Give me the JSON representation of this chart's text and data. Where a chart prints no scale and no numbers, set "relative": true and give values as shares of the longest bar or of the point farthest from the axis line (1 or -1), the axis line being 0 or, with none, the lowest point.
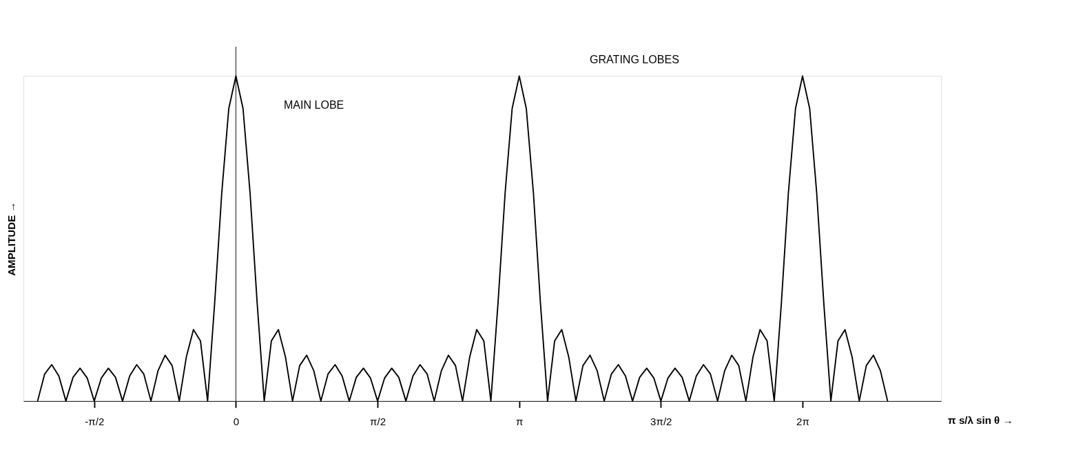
{
  "chart_data": {
    "type": "line",
    "relative": true,
    "xlabel": "π s/λ sin θ →",
    "ylabel": "AMPLITUDE →",
    "x": [
      -2.199,
      -2.121,
      -2.042,
      -1.963,
      -1.885,
      -1.806,
      -1.728,
      -1.649,
      -1.571,
      -1.492,
      -1.414,
      -1.335,
      -1.257,
      -1.178,
      -1.1,
      -1.021,
      -0.942,
      -0.864,
      -0.785,
      -0.707,
      -0.628,
      -0.55,
      -0.471,
      -0.393,
      -0.314,
      -0.236,
      -0.157,
      -0.079,
      0,
      0.079,
      0.157,
      0.236,
      0.314,
      0.393,
      0.471,
      0.55,
      0.628,
      0.707,
      0.785,
      0.864,
      0.942,
      1.021,
      1.1,
      1.178,
      1.257,
      1.335,
      1.414,
      1.492,
      1.571,
      1.649,
      1.728,
      1.806,
      1.885,
      1.963,
      2.042,
      2.121,
      2.199,
      2.278,
      2.356,
      2.435,
      2.513,
      2.592,
      2.67,
      2.749,
      2.827,
      2.906,
      2.985,
      3.063,
      3.142,
      3.22,
      3.299,
      3.377,
      3.456,
      3.534,
      3.613,
      3.691,
      3.77,
      3.848,
      3.927,
      4.006,
      4.084,
      4.163,
      4.241,
      4.32,
      4.398,
      4.477,
      4.555,
      4.634,
      4.712,
      4.791,
      4.869,
      4.948,
      5.027,
      5.105,
      5.184,
      5.262,
      5.341,
      5.419,
      5.498,
      5.576,
      5.655,
      5.733,
      5.812,
      5.89,
      5.969,
      6.048,
      6.126,
      6.205,
      6.283,
      6.362,
      6.44,
      6.519,
      6.597,
      6.676,
      6.754,
      6.833,
      6.912,
      6.99,
      7.069,
      7.147,
      7.226
    ],
    "series": [
      {
        "color": "#000000",
        "values": [
          0,
          0.083,
          0.112,
          0.077,
          0,
          0.073,
          0.101,
          0.071,
          0,
          0.071,
          0.101,
          0.073,
          0,
          0.077,
          0.112,
          0.083,
          0,
          0.093,
          0.141,
          0.109,
          0,
          0.135,
          0.22,
          0.185,
          0,
          0.3,
          0.64,
          0.9,
          1,
          0.9,
          0.64,
          0.3,
          0,
          0.185,
          0.22,
          0.135,
          0,
          0.109,
          0.141,
          0.093,
          0,
          0.083,
          0.112,
          0.077,
          0,
          0.073,
          0.101,
          0.071,
          0,
          0.071,
          0.101,
          0.073,
          0,
          0.077,
          0.112,
          0.083,
          0,
          0.093,
          0.141,
          0.109,
          0,
          0.135,
          0.22,
          0.185,
          0,
          0.3,
          0.64,
          0.9,
          1,
          0.9,
          0.64,
          0.3,
          0,
          0.185,
          0.22,
          0.135,
          0,
          0.109,
          0.141,
          0.093,
          0,
          0.083,
          0.112,
          0.077,
          0,
          0.073,
          0.101,
          0.071,
          0,
          0.071,
          0.101,
          0.073,
          0,
          0.077,
          0.112,
          0.083,
          0,
          0.093,
          0.141,
          0.109,
          0,
          0.135,
          0.22,
          0.185,
          0,
          0.3,
          0.64,
          0.9,
          1,
          0.9,
          0.64,
          0.3,
          0,
          0.185,
          0.22,
          0.135,
          0,
          0.109,
          0.141,
          0.093,
          0
        ]
      }
    ],
    "xlim": [
      -2.356,
      7.82
    ],
    "xticks": [
      {
        "value": -1.571,
        "label": "-π/2"
      },
      {
        "value": 0,
        "label": "0"
      },
      {
        "value": 1.571,
        "label": "π/2"
      },
      {
        "value": 3.142,
        "label": "π"
      },
      {
        "value": 4.712,
        "label": "3π/2"
      },
      {
        "value": 6.283,
        "label": "2π"
      }
    ],
    "ref_lines": [
      {
        "axis": "x",
        "value": 0,
        "color": "#000000"
      }
    ],
    "annotations": [
      "MAIN LOBE",
      "GRATING LOBES"
    ],
    "grid": false,
    "marker": "none",
    "line_style": "solid"
  }
}
